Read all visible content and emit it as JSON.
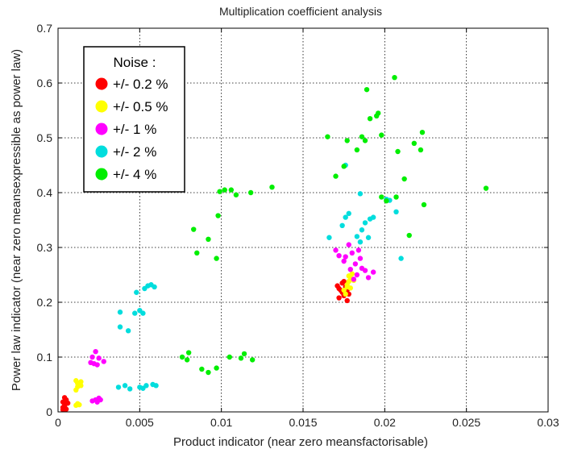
{
  "chart_data": {
    "type": "scatter",
    "title": "Multiplication coefficient analysis",
    "xlabel": "Product indicator (near zero meansfactorisable)",
    "ylabel": "Power law indicator (near zero meansexpressible as power law)",
    "xlim": [
      0,
      0.03
    ],
    "ylim": [
      0,
      0.7
    ],
    "xticks": [
      "0",
      "0.005",
      "0.01",
      "0.015",
      "0.02",
      "0.025",
      "0.03"
    ],
    "yticks": [
      "0",
      "0.1",
      "0.2",
      "0.3",
      "0.4",
      "0.5",
      "0.6",
      "0.7"
    ],
    "xtick_values": [
      0,
      0.005,
      0.01,
      0.015,
      0.02,
      0.025,
      0.03
    ],
    "ytick_values": [
      0,
      0.1,
      0.2,
      0.3,
      0.4,
      0.5,
      0.6,
      0.7
    ],
    "grid": true,
    "legend": {
      "title": "Noise :",
      "position": "top-left"
    },
    "series": [
      {
        "name": "+/- 0.2 %",
        "color": "#ff0000",
        "points": [
          [
            0.0003,
            0.004
          ],
          [
            0.0004,
            0.01
          ],
          [
            0.0003,
            0.018
          ],
          [
            0.0005,
            0.022
          ],
          [
            0.0004,
            0.026
          ],
          [
            0.0006,
            0.016
          ],
          [
            0.0005,
            0.005
          ],
          [
            0.0004,
            0.012
          ],
          [
            0.0003,
            0.008
          ],
          [
            0.0005,
            0.02
          ],
          [
            0.0172,
            0.208
          ],
          [
            0.0173,
            0.222
          ],
          [
            0.0174,
            0.235
          ],
          [
            0.0175,
            0.212
          ],
          [
            0.0176,
            0.228
          ],
          [
            0.0177,
            0.203
          ],
          [
            0.0171,
            0.23
          ],
          [
            0.0178,
            0.215
          ],
          [
            0.0174,
            0.218
          ],
          [
            0.0175,
            0.238
          ],
          [
            0.0172,
            0.225
          ],
          [
            0.0177,
            0.222
          ]
        ]
      },
      {
        "name": "+/- 0.5 %",
        "color": "#ffff00",
        "points": [
          [
            0.0011,
            0.012
          ],
          [
            0.0012,
            0.015
          ],
          [
            0.0013,
            0.013
          ],
          [
            0.0011,
            0.04
          ],
          [
            0.0012,
            0.046
          ],
          [
            0.0013,
            0.05
          ],
          [
            0.0014,
            0.055
          ],
          [
            0.0012,
            0.052
          ],
          [
            0.0011,
            0.057
          ],
          [
            0.0014,
            0.048
          ],
          [
            0.0176,
            0.215
          ],
          [
            0.0177,
            0.228
          ],
          [
            0.0178,
            0.238
          ],
          [
            0.0179,
            0.245
          ],
          [
            0.018,
            0.252
          ],
          [
            0.0177,
            0.232
          ],
          [
            0.0175,
            0.222
          ],
          [
            0.0181,
            0.24
          ],
          [
            0.0178,
            0.248
          ],
          [
            0.0179,
            0.226
          ]
        ]
      },
      {
        "name": "+/- 1 %",
        "color": "#ff00ff",
        "points": [
          [
            0.0021,
            0.1
          ],
          [
            0.0023,
            0.11
          ],
          [
            0.0025,
            0.098
          ],
          [
            0.0022,
            0.088
          ],
          [
            0.0024,
            0.086
          ],
          [
            0.002,
            0.09
          ],
          [
            0.0028,
            0.092
          ],
          [
            0.0023,
            0.022
          ],
          [
            0.0025,
            0.025
          ],
          [
            0.0021,
            0.02
          ],
          [
            0.0026,
            0.022
          ],
          [
            0.0024,
            0.018
          ],
          [
            0.017,
            0.295
          ],
          [
            0.0172,
            0.285
          ],
          [
            0.0175,
            0.275
          ],
          [
            0.0178,
            0.305
          ],
          [
            0.018,
            0.29
          ],
          [
            0.0182,
            0.27
          ],
          [
            0.0185,
            0.28
          ],
          [
            0.0179,
            0.26
          ],
          [
            0.0186,
            0.262
          ],
          [
            0.0188,
            0.258
          ],
          [
            0.0183,
            0.25
          ],
          [
            0.0181,
            0.242
          ],
          [
            0.019,
            0.245
          ],
          [
            0.0193,
            0.255
          ],
          [
            0.0176,
            0.283
          ],
          [
            0.0184,
            0.295
          ]
        ]
      },
      {
        "name": "+/- 2 %",
        "color": "#00dddd",
        "points": [
          [
            0.0037,
            0.045
          ],
          [
            0.0041,
            0.048
          ],
          [
            0.0044,
            0.042
          ],
          [
            0.005,
            0.045
          ],
          [
            0.0052,
            0.043
          ],
          [
            0.0054,
            0.048
          ],
          [
            0.0058,
            0.05
          ],
          [
            0.006,
            0.048
          ],
          [
            0.0038,
            0.155
          ],
          [
            0.0043,
            0.148
          ],
          [
            0.0038,
            0.182
          ],
          [
            0.0047,
            0.18
          ],
          [
            0.005,
            0.185
          ],
          [
            0.0052,
            0.18
          ],
          [
            0.0048,
            0.218
          ],
          [
            0.0053,
            0.225
          ],
          [
            0.0057,
            0.232
          ],
          [
            0.0055,
            0.23
          ],
          [
            0.0059,
            0.228
          ],
          [
            0.0166,
            0.318
          ],
          [
            0.0174,
            0.34
          ],
          [
            0.0176,
            0.355
          ],
          [
            0.0178,
            0.362
          ],
          [
            0.0183,
            0.32
          ],
          [
            0.0185,
            0.31
          ],
          [
            0.0188,
            0.345
          ],
          [
            0.0191,
            0.352
          ],
          [
            0.0193,
            0.355
          ],
          [
            0.0186,
            0.332
          ],
          [
            0.019,
            0.318
          ],
          [
            0.0185,
            0.398
          ],
          [
            0.0201,
            0.388
          ],
          [
            0.0203,
            0.386
          ],
          [
            0.0207,
            0.365
          ],
          [
            0.021,
            0.28
          ],
          [
            0.0176,
            0.45
          ]
        ]
      },
      {
        "name": "+/- 4 %",
        "color": "#00ee00",
        "points": [
          [
            0.0076,
            0.1
          ],
          [
            0.0079,
            0.095
          ],
          [
            0.008,
            0.108
          ],
          [
            0.0088,
            0.078
          ],
          [
            0.0092,
            0.072
          ],
          [
            0.0097,
            0.08
          ],
          [
            0.0105,
            0.1
          ],
          [
            0.0112,
            0.098
          ],
          [
            0.0114,
            0.106
          ],
          [
            0.0119,
            0.095
          ],
          [
            0.0083,
            0.333
          ],
          [
            0.0085,
            0.29
          ],
          [
            0.0092,
            0.315
          ],
          [
            0.0097,
            0.28
          ],
          [
            0.0098,
            0.358
          ],
          [
            0.0099,
            0.402
          ],
          [
            0.0102,
            0.405
          ],
          [
            0.0106,
            0.405
          ],
          [
            0.0109,
            0.396
          ],
          [
            0.0118,
            0.4
          ],
          [
            0.0131,
            0.41
          ],
          [
            0.0165,
            0.502
          ],
          [
            0.017,
            0.43
          ],
          [
            0.0175,
            0.448
          ],
          [
            0.0177,
            0.495
          ],
          [
            0.0183,
            0.478
          ],
          [
            0.0186,
            0.502
          ],
          [
            0.0188,
            0.495
          ],
          [
            0.0189,
            0.588
          ],
          [
            0.0191,
            0.535
          ],
          [
            0.0195,
            0.54
          ],
          [
            0.0196,
            0.545
          ],
          [
            0.0198,
            0.505
          ],
          [
            0.0198,
            0.392
          ],
          [
            0.0201,
            0.385
          ],
          [
            0.0206,
            0.61
          ],
          [
            0.0207,
            0.392
          ],
          [
            0.0208,
            0.475
          ],
          [
            0.0212,
            0.425
          ],
          [
            0.0215,
            0.322
          ],
          [
            0.0218,
            0.49
          ],
          [
            0.0222,
            0.478
          ],
          [
            0.0223,
            0.51
          ],
          [
            0.0224,
            0.378
          ],
          [
            0.0262,
            0.408
          ]
        ]
      }
    ]
  }
}
